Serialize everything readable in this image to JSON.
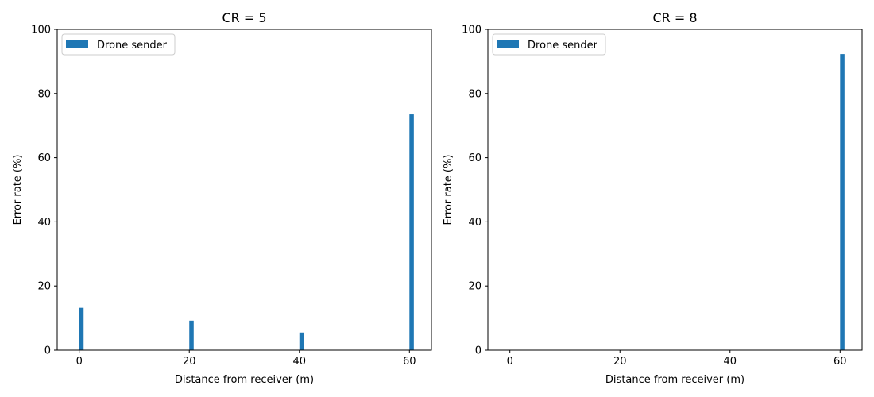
{
  "chart_data": [
    {
      "type": "bar",
      "title": "CR = 5",
      "xlabel": "Distance from receiver (m)",
      "ylabel": "Error rate (%)",
      "xlim": [
        -4,
        64
      ],
      "ylim": [
        0,
        100
      ],
      "xticks": [
        0,
        20,
        40,
        60
      ],
      "yticks": [
        0,
        20,
        40,
        60,
        80,
        100
      ],
      "legend_position": "upper-left",
      "series": [
        {
          "name": "Drone sender",
          "color": "#1f77b4",
          "x": [
            0.4,
            20.4,
            40.4,
            60.4
          ],
          "values": [
            13.2,
            9.2,
            5.5,
            73.5
          ]
        }
      ]
    },
    {
      "type": "bar",
      "title": "CR = 8",
      "xlabel": "Distance from receiver (m)",
      "ylabel": "Error rate (%)",
      "xlim": [
        -4,
        64
      ],
      "ylim": [
        0,
        100
      ],
      "xticks": [
        0,
        20,
        40,
        60
      ],
      "yticks": [
        0,
        20,
        40,
        60,
        80,
        100
      ],
      "legend_position": "upper-left",
      "series": [
        {
          "name": "Drone sender",
          "color": "#1f77b4",
          "x": [
            60.4
          ],
          "values": [
            92.3
          ]
        }
      ]
    }
  ]
}
